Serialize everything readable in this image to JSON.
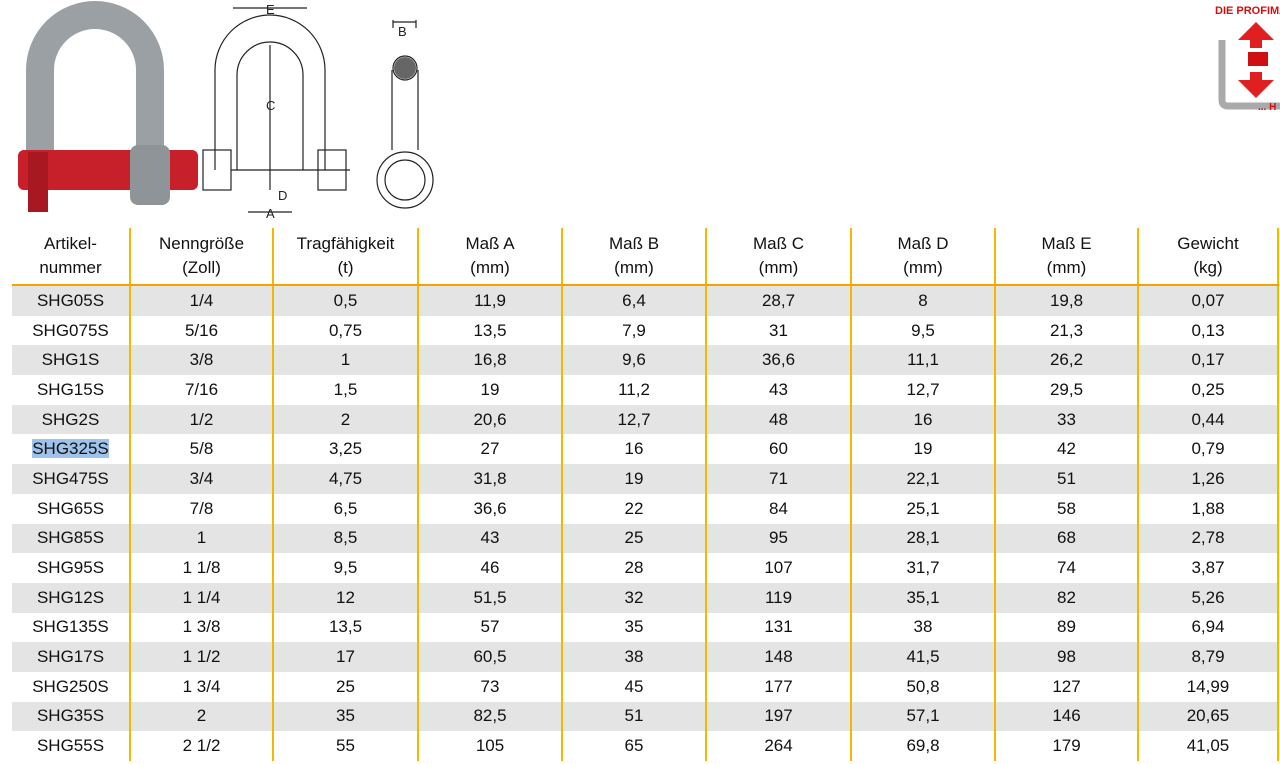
{
  "logo": {
    "text": "DIE PROFIMA",
    "tagline": "... H"
  },
  "diagram": {
    "labels": [
      "E",
      "C",
      "D",
      "A",
      "B"
    ]
  },
  "table": {
    "columns": [
      [
        "Artikel-",
        "nummer"
      ],
      [
        "Nenngröße",
        "(Zoll)"
      ],
      [
        "Tragfähigkeit",
        "(t)"
      ],
      [
        "Maß A",
        "(mm)"
      ],
      [
        "Maß B",
        "(mm)"
      ],
      [
        "Maß C",
        "(mm)"
      ],
      [
        "Maß D",
        "(mm)"
      ],
      [
        "Maß E",
        "(mm)"
      ],
      [
        "Gewicht",
        "(kg)"
      ]
    ],
    "rows": [
      [
        "SHG05S",
        "1/4",
        "0,5",
        "11,9",
        "6,4",
        "28,7",
        "8",
        "19,8",
        "0,07"
      ],
      [
        "SHG075S",
        "5/16",
        "0,75",
        "13,5",
        "7,9",
        "31",
        "9,5",
        "21,3",
        "0,13"
      ],
      [
        "SHG1S",
        "3/8",
        "1",
        "16,8",
        "9,6",
        "36,6",
        "11,1",
        "26,2",
        "0,17"
      ],
      [
        "SHG15S",
        "7/16",
        "1,5",
        "19",
        "11,2",
        "43",
        "12,7",
        "29,5",
        "0,25"
      ],
      [
        "SHG2S",
        "1/2",
        "2",
        "20,6",
        "12,7",
        "48",
        "16",
        "33",
        "0,44"
      ],
      [
        "SHG325S",
        "5/8",
        "3,25",
        "27",
        "16",
        "60",
        "19",
        "42",
        "0,79"
      ],
      [
        "SHG475S",
        "3/4",
        "4,75",
        "31,8",
        "19",
        "71",
        "22,1",
        "51",
        "1,26"
      ],
      [
        "SHG65S",
        "7/8",
        "6,5",
        "36,6",
        "22",
        "84",
        "25,1",
        "58",
        "1,88"
      ],
      [
        "SHG85S",
        "1",
        "8,5",
        "43",
        "25",
        "95",
        "28,1",
        "68",
        "2,78"
      ],
      [
        "SHG95S",
        "1 1/8",
        "9,5",
        "46",
        "28",
        "107",
        "31,7",
        "74",
        "3,87"
      ],
      [
        "SHG12S",
        "1 1/4",
        "12",
        "51,5",
        "32",
        "119",
        "35,1",
        "82",
        "5,26"
      ],
      [
        "SHG135S",
        "1 3/8",
        "13,5",
        "57",
        "35",
        "131",
        "38",
        "89",
        "6,94"
      ],
      [
        "SHG17S",
        "1 1/2",
        "17",
        "60,5",
        "38",
        "148",
        "41,5",
        "98",
        "8,79"
      ],
      [
        "SHG250S",
        "1 3/4",
        "25",
        "73",
        "45",
        "177",
        "50,8",
        "127",
        "14,99"
      ],
      [
        "SHG35S",
        "2",
        "35",
        "82,5",
        "51",
        "197",
        "57,1",
        "146",
        "20,65"
      ],
      [
        "SHG55S",
        "2 1/2",
        "55",
        "105",
        "65",
        "264",
        "69,8",
        "179",
        "41,05"
      ]
    ]
  }
}
